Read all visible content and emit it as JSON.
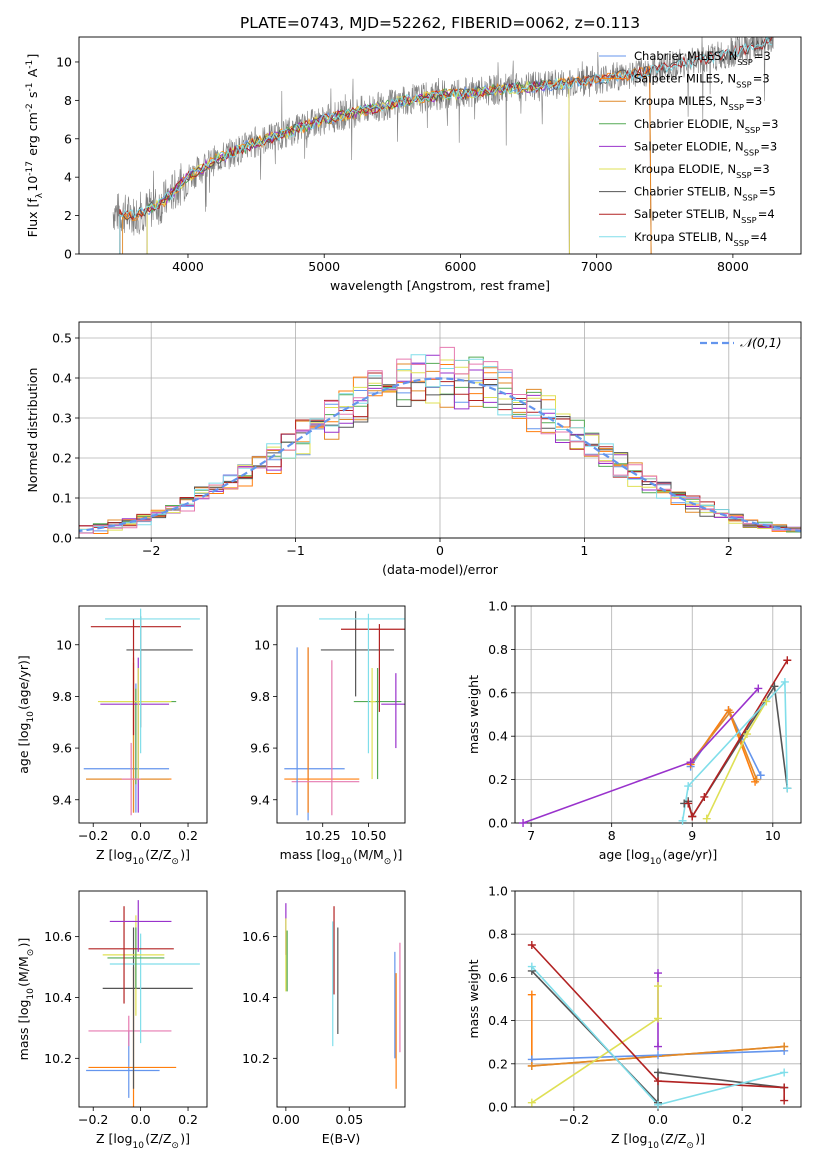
{
  "figure_title": "PLATE=0743, MJD=52262, FIBERID=0062, z=0.113",
  "colors": {
    "Chabrier MILES": "#6495ed",
    "Salpeter MILES": "#ff7f0e",
    "Kroupa MILES": "#e08a2a",
    "Chabrier ELODIE": "#55aa55",
    "Salpeter ELODIE": "#9932cc",
    "Kroupa ELODIE": "#dfe055",
    "Chabrier STELIB": "#555555",
    "Salpeter STELIB": "#b22222",
    "Kroupa STELIB": "#80deea",
    "Pink": "#e67ab0",
    "data": "#808080",
    "gauss": "#6495ed"
  },
  "chart_data": [
    {
      "id": "spectrum",
      "type": "line",
      "xlabel": "wavelength [Angstrom, rest frame]",
      "ylabel": "Flux [f$_\\lambda$10$^{-17}$ erg cm$^{-2}$ s$^{-1}$ A$^{-1}$]",
      "xlim": [
        3200,
        8500
      ],
      "ylim": [
        0,
        11.3
      ],
      "xticks": [
        4000,
        5000,
        6000,
        7000,
        8000
      ],
      "yticks": [
        0,
        2,
        4,
        6,
        8,
        10
      ],
      "legend_position": "top-right",
      "legend": [
        {
          "name": "Chabrier MILES",
          "sub": "SSP",
          "n": "3"
        },
        {
          "name": "Salpeter MILES",
          "sub": "SSP",
          "n": "3"
        },
        {
          "name": "Kroupa MILES",
          "sub": "SSP",
          "n": "3"
        },
        {
          "name": "Chabrier ELODIE",
          "sub": "SSP",
          "n": "3"
        },
        {
          "name": "Salpeter ELODIE",
          "sub": "SSP",
          "n": "3"
        },
        {
          "name": "Kroupa ELODIE",
          "sub": "SSP",
          "n": "3"
        },
        {
          "name": "Chabrier STELIB",
          "sub": "SSP",
          "n": "5"
        },
        {
          "name": "Salpeter STELIB",
          "sub": "SSP",
          "n": "4"
        },
        {
          "name": "Kroupa STELIB",
          "sub": "SSP",
          "n": "4"
        }
      ],
      "continuum": {
        "x": [
          3450,
          3600,
          3800,
          4000,
          4200,
          4500,
          4800,
          5000,
          5300,
          5600,
          5900,
          6200,
          6500,
          6800,
          7000,
          7300,
          7600,
          7900,
          8200,
          8300
        ],
        "y": [
          2.2,
          2.0,
          2.6,
          4.0,
          4.9,
          5.8,
          6.5,
          7.0,
          7.5,
          8.0,
          8.3,
          8.5,
          8.7,
          8.9,
          9.1,
          9.4,
          9.9,
          10.3,
          10.9,
          11.2
        ]
      }
    },
    {
      "id": "residuals",
      "type": "step",
      "xlabel": "(data-model)/error",
      "ylabel": "Normed distribution",
      "xlim": [
        -2.5,
        2.5
      ],
      "ylim": [
        0,
        0.54
      ],
      "xticks": [
        -2,
        -1,
        0,
        1,
        2
      ],
      "xtick_labels": [
        "−2",
        "−1",
        "0",
        "1",
        "2"
      ],
      "yticks": [
        0.0,
        0.1,
        0.2,
        0.3,
        0.4,
        0.5
      ],
      "grid": true,
      "legend": "$\\mathcal{N}(0,1)$",
      "legend_position": "top-right"
    },
    {
      "id": "age_vs_Z",
      "type": "errorbar",
      "xlabel": "Z [log$_{10}$(Z/Z$_\\odot$)]",
      "ylabel": "age  [log$_{10}$(age/yr)]",
      "xlim": [
        -0.26,
        0.28
      ],
      "ylim": [
        9.31,
        10.15
      ],
      "xticks": [
        -0.2,
        0.0,
        0.2
      ],
      "xtick_labels": [
        "−0.2",
        "0.0",
        "0.2"
      ],
      "yticks": [
        9.4,
        9.6,
        9.8,
        10.0
      ],
      "points": [
        {
          "c": "Chabrier MILES",
          "x": -0.02,
          "y": 9.52,
          "xerr": [
            0.22,
            0.14
          ],
          "yerr": [
            0.17,
            0.33
          ]
        },
        {
          "c": "Salpeter MILES",
          "x": -0.03,
          "y": 9.48,
          "xerr": [
            0.2,
            0.16
          ],
          "yerr": [
            0.13,
            0.47
          ]
        },
        {
          "c": "Kroupa MILES",
          "x": -0.03,
          "y": 9.48,
          "xerr": [
            0.2,
            0.15
          ],
          "yerr": [
            0.13,
            0.45
          ]
        },
        {
          "c": "Chabrier ELODIE",
          "x": -0.02,
          "y": 9.78,
          "xerr": [
            0.15,
            0.17
          ],
          "yerr": [
            0.32,
            0.05
          ]
        },
        {
          "c": "Salpeter ELODIE",
          "x": -0.01,
          "y": 9.77,
          "xerr": [
            0.16,
            0.13
          ],
          "yerr": [
            0.42,
            0.18
          ]
        },
        {
          "c": "Kroupa ELODIE",
          "x": -0.01,
          "y": 9.78,
          "xerr": [
            0.17,
            0.14
          ],
          "yerr": [
            0.3,
            0.13
          ]
        },
        {
          "c": "Chabrier STELIB",
          "x": 0.0,
          "y": 9.98,
          "xerr": [
            0.06,
            0.22
          ],
          "yerr": [
            0.3,
            0.13
          ]
        },
        {
          "c": "Salpeter STELIB",
          "x": -0.03,
          "y": 10.07,
          "xerr": [
            0.18,
            0.2
          ],
          "yerr": [
            0.42,
            0.03
          ]
        },
        {
          "c": "Kroupa STELIB",
          "x": 0.0,
          "y": 10.1,
          "xerr": [
            0.15,
            0.25
          ],
          "yerr": [
            0.52,
            0.04
          ]
        },
        {
          "c": "Pink",
          "x": -0.04,
          "y": 9.48,
          "xerr": [
            0.04,
            0.04
          ],
          "yerr": [
            0.14,
            0.14
          ]
        }
      ]
    },
    {
      "id": "age_vs_mass",
      "type": "errorbar",
      "xlabel": "mass [log$_{10}$(M/M$_\\odot$)]",
      "xlim": [
        10.0,
        10.7
      ],
      "ylim": [
        9.31,
        10.15
      ],
      "xticks": [
        10.25,
        10.5
      ],
      "xtick_labels": [
        "10.25",
        "10.50"
      ],
      "yticks": [
        9.4,
        9.6,
        9.8,
        10.0
      ],
      "points": [
        {
          "c": "Chabrier MILES",
          "x": 10.17,
          "y": 9.52,
          "xerr": [
            0.13,
            0.2
          ],
          "yerr": [
            0.2,
            0.47
          ]
        },
        {
          "c": "Salpeter MILES",
          "x": 10.17,
          "y": 9.48,
          "xerr": [
            0.13,
            0.28
          ],
          "yerr": [
            0.13,
            0.51
          ]
        },
        {
          "c": "Pink",
          "x": 10.3,
          "y": 9.47,
          "xerr": [
            0.22,
            0.15
          ],
          "yerr": [
            0.13,
            0.47
          ]
        },
        {
          "c": "Chabrier ELODIE",
          "x": 10.55,
          "y": 9.78,
          "xerr": [
            0.13,
            0.13
          ],
          "yerr": [
            0.3,
            0.13
          ]
        },
        {
          "c": "Salpeter ELODIE",
          "x": 10.65,
          "y": 9.77,
          "xerr": [
            0.08,
            0.09
          ],
          "yerr": [
            0.17,
            0.12
          ]
        },
        {
          "c": "Kroupa ELODIE",
          "x": 10.52,
          "y": 9.78,
          "xerr": [
            0.01,
            0.02
          ],
          "yerr": [
            0.3,
            0.13
          ]
        },
        {
          "c": "Chabrier STELIB",
          "x": 10.43,
          "y": 9.98,
          "xerr": [
            0.19,
            0.21
          ],
          "yerr": [
            0.18,
            0.15
          ]
        },
        {
          "c": "Salpeter STELIB",
          "x": 10.56,
          "y": 10.06,
          "xerr": [
            0.21,
            0.18
          ],
          "yerr": [
            0.32,
            0.02
          ]
        },
        {
          "c": "Kroupa STELIB",
          "x": 10.5,
          "y": 10.1,
          "xerr": [
            0.27,
            0.25
          ],
          "yerr": [
            0.52,
            0.02
          ]
        },
        {
          "c": "Chabrier MILES",
          "x": 10.11,
          "y": 9.75,
          "xerr": [
            0.0,
            0.0
          ],
          "yerr": [
            0.41,
            0.24
          ]
        }
      ]
    },
    {
      "id": "weight_vs_age",
      "type": "line",
      "xlabel": "age  [log$_{10}$(age/yr)]",
      "ylabel": "mass weight",
      "xlim": [
        6.8,
        10.35
      ],
      "ylim": [
        0,
        1.0
      ],
      "xticks": [
        7,
        8,
        9,
        10
      ],
      "yticks": [
        0.0,
        0.2,
        0.4,
        0.6,
        0.8,
        1.0
      ],
      "grid": true,
      "series": [
        {
          "c": "Chabrier MILES",
          "x": [
            8.98,
            9.45,
            9.85
          ],
          "y": [
            0.26,
            0.52,
            0.22
          ]
        },
        {
          "c": "Salpeter MILES",
          "x": [
            8.98,
            9.45,
            9.78
          ],
          "y": [
            0.27,
            0.52,
            0.19
          ]
        },
        {
          "c": "Kroupa MILES",
          "x": [
            8.98,
            9.47,
            9.8
          ],
          "y": [
            0.28,
            0.51,
            0.2
          ]
        },
        {
          "c": "Salpeter ELODIE",
          "x": [
            6.9,
            8.98,
            9.82
          ],
          "y": [
            0.0,
            0.28,
            0.62
          ]
        },
        {
          "c": "Kroupa ELODIE",
          "x": [
            9.18,
            9.68,
            9.92
          ],
          "y": [
            0.02,
            0.41,
            0.56
          ]
        },
        {
          "c": "Chabrier STELIB",
          "x": [
            8.9,
            8.95,
            9.0,
            10.02,
            10.18
          ],
          "y": [
            0.09,
            0.1,
            0.03,
            0.63,
            0.16
          ]
        },
        {
          "c": "Salpeter STELIB",
          "x": [
            8.95,
            9.0,
            9.15,
            10.18
          ],
          "y": [
            0.09,
            0.03,
            0.12,
            0.75
          ]
        },
        {
          "c": "Kroupa STELIB",
          "x": [
            8.88,
            8.95,
            10.15,
            10.18
          ],
          "y": [
            0.01,
            0.17,
            0.65,
            0.16
          ]
        }
      ]
    },
    {
      "id": "mass_vs_Z",
      "type": "errorbar",
      "xlabel": "Z [log$_{10}$(Z/Z$_\\odot$)]",
      "ylabel": "mass [log$_{10}$(M/M$_\\odot$)]",
      "xlim": [
        -0.26,
        0.28
      ],
      "ylim": [
        10.04,
        10.75
      ],
      "xticks": [
        -0.2,
        0.0,
        0.2
      ],
      "xtick_labels": [
        "−0.2",
        "0.0",
        "0.2"
      ],
      "yticks": [
        10.2,
        10.4,
        10.6
      ],
      "points": [
        {
          "c": "Chabrier MILES",
          "x": -0.05,
          "y": 10.16,
          "xerr": [
            0.18,
            0.13
          ],
          "yerr": [
            0.09,
            0.13
          ]
        },
        {
          "c": "Salpeter MILES",
          "x": -0.03,
          "y": 10.17,
          "xerr": [
            0.19,
            0.18
          ],
          "yerr": [
            0.14,
            0.33
          ]
        },
        {
          "c": "Pink",
          "x": -0.05,
          "y": 10.29,
          "xerr": [
            0.17,
            0.18
          ],
          "yerr": [
            0.05,
            0.05
          ]
        },
        {
          "c": "Chabrier STELIB",
          "x": -0.03,
          "y": 10.43,
          "xerr": [
            0.13,
            0.25
          ],
          "yerr": [
            0.33,
            0.2
          ]
        },
        {
          "c": "Kroupa STELIB",
          "x": 0.0,
          "y": 10.51,
          "xerr": [
            0.13,
            0.25
          ],
          "yerr": [
            0.26,
            0.1
          ]
        },
        {
          "c": "Kroupa ELODIE",
          "x": -0.02,
          "y": 10.54,
          "xerr": [
            0.14,
            0.12
          ],
          "yerr": [
            0.2,
            0.13
          ]
        },
        {
          "c": "Chabrier ELODIE",
          "x": -0.02,
          "y": 10.53,
          "xerr": [
            0.12,
            0.12
          ],
          "yerr": [
            0.1,
            0.1
          ]
        },
        {
          "c": "Salpeter STELIB",
          "x": -0.07,
          "y": 10.56,
          "xerr": [
            0.15,
            0.21
          ],
          "yerr": [
            0.18,
            0.14
          ]
        },
        {
          "c": "Salpeter ELODIE",
          "x": -0.01,
          "y": 10.65,
          "xerr": [
            0.12,
            0.14
          ],
          "yerr": [
            0.1,
            0.07
          ]
        }
      ]
    },
    {
      "id": "mass_vs_ebv",
      "type": "errorbar",
      "xlabel": "E(B-V)",
      "xlim": [
        -0.007,
        0.094
      ],
      "ylim": [
        10.04,
        10.75
      ],
      "xticks": [
        0.0,
        0.05
      ],
      "xtick_labels": [
        "0.00",
        "0.05"
      ],
      "yticks": [
        10.2,
        10.4,
        10.6
      ],
      "points": [
        {
          "c": "Salpeter ELODIE",
          "x": 0.0,
          "y": 10.6,
          "xerr": [
            0,
            0
          ],
          "yerr": [
            0.06,
            0.11
          ]
        },
        {
          "c": "Kroupa ELODIE",
          "x": 0.0,
          "y": 10.54,
          "xerr": [
            0,
            0
          ],
          "yerr": [
            0.12,
            0.12
          ]
        },
        {
          "c": "Chabrier ELODIE",
          "x": 0.001,
          "y": 10.55,
          "xerr": [
            0,
            0
          ],
          "yerr": [
            0.13,
            0.07
          ]
        },
        {
          "c": "Salpeter STELIB",
          "x": 0.038,
          "y": 10.56,
          "xerr": [
            0,
            0
          ],
          "yerr": [
            0.15,
            0.14
          ]
        },
        {
          "c": "Kroupa STELIB",
          "x": 0.037,
          "y": 10.47,
          "xerr": [
            0,
            0
          ],
          "yerr": [
            0.23,
            0.18
          ]
        },
        {
          "c": "Chabrier STELIB",
          "x": 0.041,
          "y": 10.46,
          "xerr": [
            0,
            0
          ],
          "yerr": [
            0.18,
            0.17
          ]
        },
        {
          "c": "Chabrier MILES",
          "x": 0.086,
          "y": 10.35,
          "xerr": [
            0,
            0
          ],
          "yerr": [
            0.15,
            0.2
          ]
        },
        {
          "c": "Salpeter MILES",
          "x": 0.087,
          "y": 10.3,
          "xerr": [
            0,
            0
          ],
          "yerr": [
            0.2,
            0.18
          ]
        },
        {
          "c": "Pink",
          "x": 0.09,
          "y": 10.4,
          "xerr": [
            0,
            0
          ],
          "yerr": [
            0.18,
            0.18
          ]
        }
      ]
    },
    {
      "id": "weight_vs_Z",
      "type": "line",
      "xlabel": "Z [log$_{10}$(Z/Z$_\\odot$)]",
      "ylabel": "mass weight",
      "xlim": [
        -0.34,
        0.34
      ],
      "ylim": [
        0,
        1.0
      ],
      "xticks": [
        -0.2,
        0.0,
        0.2
      ],
      "xtick_labels": [
        "−0.2",
        "0.0",
        "0.2"
      ],
      "yticks": [
        0.0,
        0.2,
        0.4,
        0.6,
        0.8,
        1.0
      ],
      "grid": true,
      "series": [
        {
          "c": "Chabrier MILES",
          "x": [
            -0.3,
            0.0,
            0.3
          ],
          "y": [
            0.22,
            0.24,
            0.26
          ]
        },
        {
          "c": "Salpeter MILES",
          "x": [
            -0.3,
            -0.3,
            0.3
          ],
          "y": [
            0.52,
            0.19,
            0.28
          ]
        },
        {
          "c": "Kroupa MILES",
          "x": [
            -0.3,
            0.3
          ],
          "y": [
            0.19,
            0.28
          ]
        },
        {
          "c": "Salpeter ELODIE",
          "x": [
            0.0,
            0.0
          ],
          "y": [
            0.62,
            0.28
          ]
        },
        {
          "c": "Kroupa ELODIE",
          "x": [
            -0.3,
            0.0,
            0.0
          ],
          "y": [
            0.02,
            0.41,
            0.56
          ]
        },
        {
          "c": "Chabrier STELIB",
          "x": [
            -0.3,
            0.0,
            0.0,
            0.3
          ],
          "y": [
            0.63,
            0.02,
            0.16,
            0.09
          ]
        },
        {
          "c": "Salpeter STELIB",
          "x": [
            -0.3,
            0.0,
            0.3,
            0.3
          ],
          "y": [
            0.75,
            0.12,
            0.09,
            0.03
          ]
        },
        {
          "c": "Kroupa STELIB",
          "x": [
            -0.3,
            0.0,
            0.3
          ],
          "y": [
            0.65,
            0.01,
            0.16
          ]
        }
      ]
    }
  ]
}
